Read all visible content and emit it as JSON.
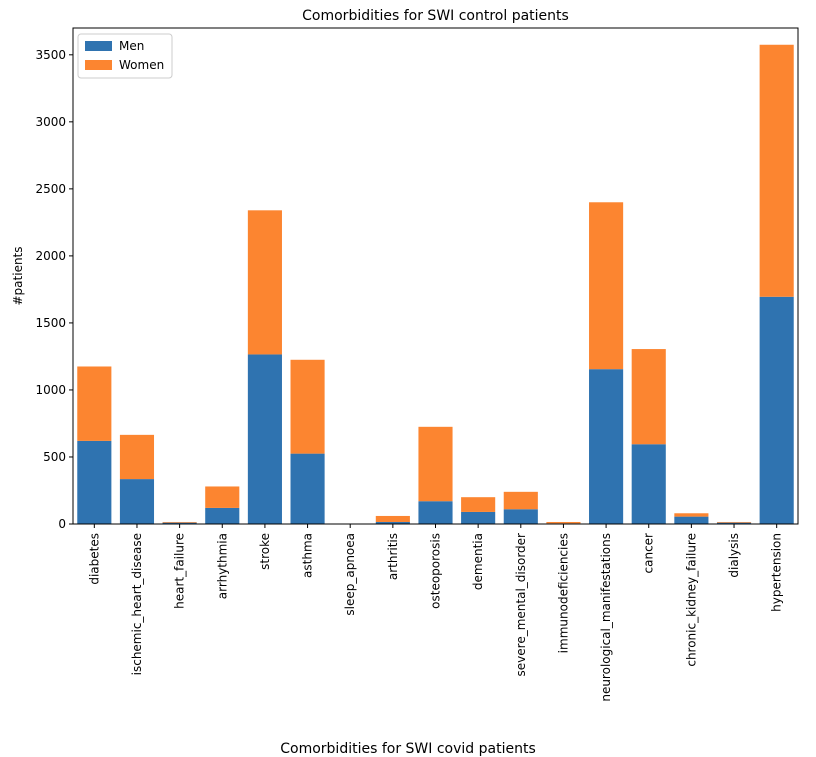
{
  "chart_data": [
    {
      "type": "bar",
      "stacked": true,
      "title": "Comorbidities for SWI control patients",
      "xlabel": "",
      "ylabel": "#patients",
      "ylim": [
        0,
        3700
      ],
      "yticks": [
        0,
        500,
        1000,
        1500,
        2000,
        2500,
        3000,
        3500
      ],
      "grid": false,
      "legend": "top-left",
      "categories": [
        "diabetes",
        "ischemic_heart_disease",
        "heart_failure",
        "arrhythmia",
        "stroke",
        "asthma",
        "sleep_apnoea",
        "arthritis",
        "osteoporosis",
        "dementia",
        "severe_mental_disorder",
        "immunodeficiencies",
        "neurological_manifestations",
        "cancer",
        "chronic_kidney_failure",
        "dialysis",
        "hypertension"
      ],
      "series": [
        {
          "name": "Men",
          "color": "#2f73b0",
          "values": [
            620,
            335,
            10,
            120,
            1265,
            525,
            0,
            15,
            170,
            90,
            110,
            5,
            1155,
            595,
            55,
            10,
            1695
          ]
        },
        {
          "name": "Women",
          "color": "#fc8530",
          "values": [
            555,
            330,
            5,
            160,
            1075,
            700,
            0,
            45,
            555,
            110,
            130,
            10,
            1245,
            710,
            25,
            5,
            1880
          ]
        }
      ]
    },
    {
      "type": "bar",
      "title": "Comorbidities for SWI covid patients"
    }
  ]
}
